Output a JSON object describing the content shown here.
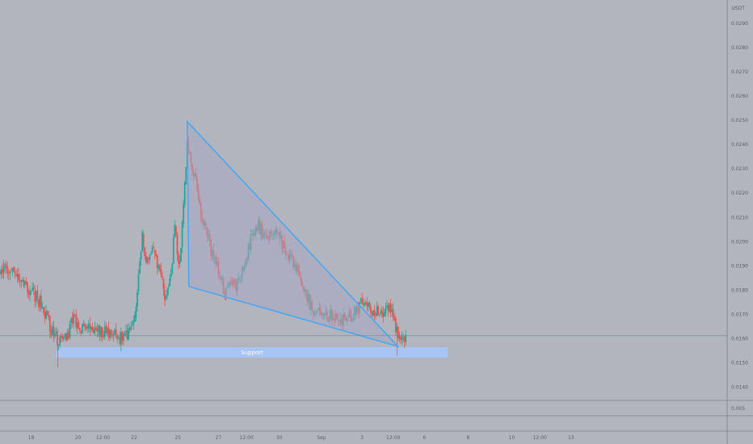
{
  "chart_data": {
    "type": "candlestick",
    "currency": "USDT",
    "y_ticks": [
      "0.0290",
      "0.0280",
      "0.0270",
      "0.0260",
      "0.0250",
      "0.0240",
      "0.0230",
      "0.0220",
      "0.0210",
      "0.0200",
      "0.0190",
      "0.0180",
      "0.0170",
      "0.0160",
      "0.0150",
      "0.0140"
    ],
    "y_tick_values": [
      0.029,
      0.028,
      0.027,
      0.026,
      0.025,
      0.024,
      0.023,
      0.022,
      0.021,
      0.02,
      0.019,
      0.018,
      0.017,
      0.016,
      0.015,
      0.014
    ],
    "ylim": [
      0.01365,
      0.0299
    ],
    "x_range": [
      0,
      23.3
    ],
    "x_ticks": [
      {
        "label": "18",
        "t": 1.0
      },
      {
        "label": "20",
        "t": 2.5
      },
      {
        "label": "12:00",
        "t": 3.3
      },
      {
        "label": "22",
        "t": 4.3
      },
      {
        "label": "25",
        "t": 5.7
      },
      {
        "label": "27",
        "t": 7.0
      },
      {
        "label": "12:00",
        "t": 7.9
      },
      {
        "label": "30",
        "t": 8.95
      },
      {
        "label": "Sep",
        "t": 10.3
      },
      {
        "label": "3",
        "t": 11.6
      },
      {
        "label": "12:00",
        "t": 12.6
      },
      {
        "label": "6",
        "t": 13.6
      },
      {
        "label": "8",
        "t": 15.0
      },
      {
        "label": "10",
        "t": 16.4
      },
      {
        "label": "12:00",
        "t": 17.3
      },
      {
        "label": "13",
        "t": 18.3
      }
    ],
    "price_path": [
      [
        0.0,
        0.01885
      ],
      [
        0.45,
        0.01875
      ],
      [
        0.8,
        0.01815
      ],
      [
        1.05,
        0.0179
      ],
      [
        1.25,
        0.01755
      ],
      [
        1.45,
        0.01705
      ],
      [
        1.7,
        0.0162
      ],
      [
        1.9,
        0.0159
      ],
      [
        2.15,
        0.016
      ],
      [
        2.35,
        0.01705
      ],
      [
        2.5,
        0.0165
      ],
      [
        2.75,
        0.01635
      ],
      [
        3.1,
        0.0164
      ],
      [
        3.5,
        0.01615
      ],
      [
        3.9,
        0.016
      ],
      [
        4.2,
        0.01625
      ],
      [
        4.4,
        0.0178
      ],
      [
        4.55,
        0.0202
      ],
      [
        4.7,
        0.019
      ],
      [
        4.9,
        0.0196
      ],
      [
        5.1,
        0.0188
      ],
      [
        5.3,
        0.0177
      ],
      [
        5.45,
        0.0183
      ],
      [
        5.6,
        0.0205
      ],
      [
        5.75,
        0.019
      ],
      [
        5.85,
        0.0209
      ],
      [
        5.9,
        0.022
      ],
      [
        6.0,
        0.0242
      ],
      [
        6.1,
        0.0234
      ],
      [
        6.3,
        0.0225
      ],
      [
        6.45,
        0.0211
      ],
      [
        6.6,
        0.0204
      ],
      [
        6.8,
        0.0195
      ],
      [
        7.0,
        0.0188
      ],
      [
        7.2,
        0.0179
      ],
      [
        7.4,
        0.0181
      ],
      [
        7.6,
        0.0183
      ],
      [
        7.8,
        0.0188
      ],
      [
        8.0,
        0.0199
      ],
      [
        8.2,
        0.0208
      ],
      [
        8.4,
        0.0204
      ],
      [
        8.6,
        0.0201
      ],
      [
        8.8,
        0.0206
      ],
      [
        9.0,
        0.02
      ],
      [
        9.2,
        0.0194
      ],
      [
        9.45,
        0.019
      ],
      [
        9.7,
        0.0181
      ],
      [
        9.9,
        0.0175
      ],
      [
        10.1,
        0.0171
      ],
      [
        10.4,
        0.0169
      ],
      [
        10.7,
        0.017
      ],
      [
        11.0,
        0.0168
      ],
      [
        11.3,
        0.017
      ],
      [
        11.6,
        0.0175
      ],
      [
        11.9,
        0.0172
      ],
      [
        12.2,
        0.017
      ],
      [
        12.45,
        0.0174
      ],
      [
        12.6,
        0.0169
      ],
      [
        12.75,
        0.0162
      ],
      [
        12.9,
        0.0161
      ],
      [
        13.0,
        0.01595
      ]
    ],
    "hline": {
      "value": 0.01612,
      "color": "#4a8f87"
    },
    "support_zone": {
      "label": "Support",
      "x_start": 1.8,
      "x_end": 14.35,
      "y_low": 0.01522,
      "y_high": 0.01565,
      "color": "#a8c4f5"
    },
    "wedge": {
      "points": [
        [
          6.0,
          0.02495
        ],
        [
          6.05,
          0.01815
        ],
        [
          12.75,
          0.01568
        ]
      ],
      "stroke": "#4aa8ef",
      "fill": "#a8a6c2"
    },
    "colors": {
      "up": "#26a69a",
      "down": "#ef5350",
      "grid_sep": "#7d8088"
    },
    "sub_pane": {
      "tick": "0.005"
    }
  }
}
